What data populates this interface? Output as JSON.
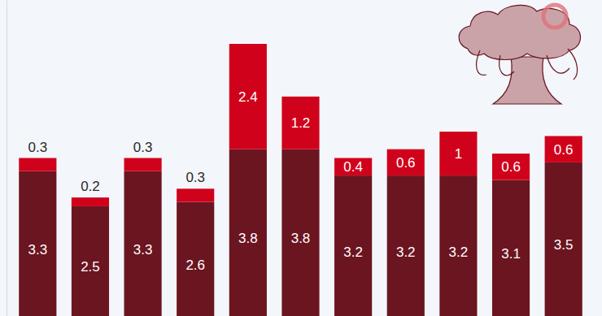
{
  "chart_data": {
    "type": "bar",
    "stacked": true,
    "data_labels": true,
    "tick_labels": false,
    "categories": [
      null,
      null,
      null,
      null,
      null,
      null,
      null,
      null,
      null,
      null,
      null
    ],
    "series": [
      {
        "color": "#6b1520",
        "values": [
          3.3,
          2.5,
          3.3,
          2.6,
          3.8,
          3.8,
          3.2,
          3.2,
          3.2,
          3.1,
          3.5
        ]
      },
      {
        "color": "#d0021b",
        "values": [
          0.3,
          0.2,
          0.3,
          0.3,
          2.4,
          1.2,
          0.4,
          0.6,
          1.0,
          0.6,
          0.6
        ]
      }
    ],
    "ylim": [
      0,
      7.2
    ],
    "yticks": [
      0
    ]
  }
}
